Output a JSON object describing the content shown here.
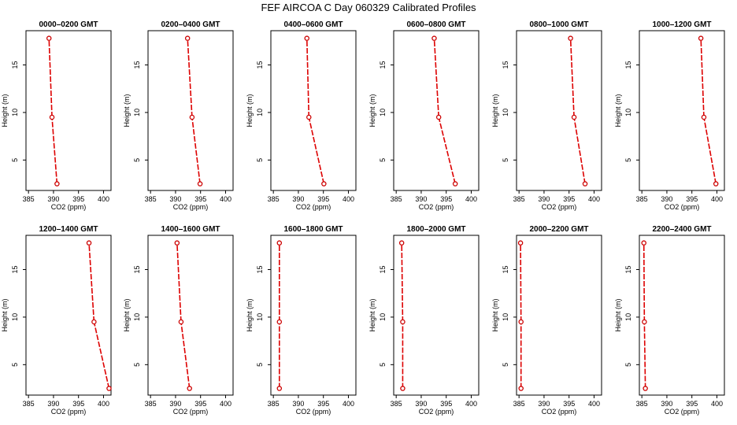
{
  "title": "FEF AIRCOA C  Day 060329  Calibrated Profiles",
  "colors": {
    "line": "#dd0000",
    "marker": "#cc0000",
    "axis": "#000000",
    "background": "#ffffff"
  },
  "chart_data": [
    {
      "type": "line",
      "title": "0000–0200 GMT",
      "xlabel": "CO2 (ppm)",
      "ylabel": "Height (m)",
      "xlim": [
        384.5,
        401.5
      ],
      "ylim": [
        1.8,
        18.6
      ],
      "xticks": [
        385,
        390,
        395,
        400
      ],
      "yticks": [
        5,
        10,
        15
      ],
      "x": [
        390.7,
        389.7,
        389.1
      ],
      "y": [
        2.5,
        9.5,
        17.8
      ]
    },
    {
      "type": "line",
      "title": "0200–0400 GMT",
      "xlabel": "CO2 (ppm)",
      "ylabel": "Height (m)",
      "xlim": [
        384.5,
        401.5
      ],
      "ylim": [
        1.8,
        18.6
      ],
      "xticks": [
        385,
        390,
        395,
        400
      ],
      "yticks": [
        5,
        10,
        15
      ],
      "x": [
        394.9,
        393.3,
        392.4
      ],
      "y": [
        2.5,
        9.5,
        17.8
      ]
    },
    {
      "type": "line",
      "title": "0400–0600 GMT",
      "xlabel": "CO2 (ppm)",
      "ylabel": "Height (m)",
      "xlim": [
        384.5,
        401.5
      ],
      "ylim": [
        1.8,
        18.6
      ],
      "xticks": [
        385,
        390,
        395,
        400
      ],
      "yticks": [
        5,
        10,
        15
      ],
      "x": [
        395.1,
        392.1,
        391.7
      ],
      "y": [
        2.5,
        9.5,
        17.8
      ]
    },
    {
      "type": "line",
      "title": "0600–0800 GMT",
      "xlabel": "CO2 (ppm)",
      "ylabel": "Height (m)",
      "xlim": [
        384.5,
        401.5
      ],
      "ylim": [
        1.8,
        18.6
      ],
      "xticks": [
        385,
        390,
        395,
        400
      ],
      "yticks": [
        5,
        10,
        15
      ],
      "x": [
        396.8,
        393.5,
        392.6
      ],
      "y": [
        2.5,
        9.5,
        17.8
      ]
    },
    {
      "type": "line",
      "title": "0800–1000 GMT",
      "xlabel": "CO2 (ppm)",
      "ylabel": "Height (m)",
      "xlim": [
        384.5,
        401.5
      ],
      "ylim": [
        1.8,
        18.6
      ],
      "xticks": [
        385,
        390,
        395,
        400
      ],
      "yticks": [
        5,
        10,
        15
      ],
      "x": [
        398.2,
        396.0,
        395.3
      ],
      "y": [
        2.5,
        9.5,
        17.8
      ]
    },
    {
      "type": "line",
      "title": "1000–1200 GMT",
      "xlabel": "CO2 (ppm)",
      "ylabel": "Height (m)",
      "xlim": [
        384.5,
        401.5
      ],
      "ylim": [
        1.8,
        18.6
      ],
      "xticks": [
        385,
        390,
        395,
        400
      ],
      "yticks": [
        5,
        10,
        15
      ],
      "x": [
        399.8,
        397.4,
        396.8
      ],
      "y": [
        2.5,
        9.5,
        17.8
      ]
    },
    {
      "type": "line",
      "title": "1200–1400 GMT",
      "xlabel": "CO2 (ppm)",
      "ylabel": "Height (m)",
      "xlim": [
        384.5,
        401.5
      ],
      "ylim": [
        1.8,
        18.6
      ],
      "xticks": [
        385,
        390,
        395,
        400
      ],
      "yticks": [
        5,
        10,
        15
      ],
      "x": [
        401.1,
        398.1,
        397.1
      ],
      "y": [
        2.5,
        9.5,
        17.8
      ]
    },
    {
      "type": "line",
      "title": "1400–1600 GMT",
      "xlabel": "CO2 (ppm)",
      "ylabel": "Height (m)",
      "xlim": [
        384.5,
        401.5
      ],
      "ylim": [
        1.8,
        18.6
      ],
      "xticks": [
        385,
        390,
        395,
        400
      ],
      "yticks": [
        5,
        10,
        15
      ],
      "x": [
        392.8,
        391.1,
        390.3
      ],
      "y": [
        2.5,
        9.5,
        17.8
      ]
    },
    {
      "type": "line",
      "title": "1600–1800 GMT",
      "xlabel": "CO2 (ppm)",
      "ylabel": "Height (m)",
      "xlim": [
        384.5,
        401.5
      ],
      "ylim": [
        1.8,
        18.6
      ],
      "xticks": [
        385,
        390,
        395,
        400
      ],
      "yticks": [
        5,
        10,
        15
      ],
      "x": [
        386.2,
        386.2,
        386.2
      ],
      "y": [
        2.5,
        9.5,
        17.8
      ]
    },
    {
      "type": "line",
      "title": "1800–2000 GMT",
      "xlabel": "CO2 (ppm)",
      "ylabel": "Height (m)",
      "xlim": [
        384.5,
        401.5
      ],
      "ylim": [
        1.8,
        18.6
      ],
      "xticks": [
        385,
        390,
        395,
        400
      ],
      "yticks": [
        5,
        10,
        15
      ],
      "x": [
        386.3,
        386.3,
        386.1
      ],
      "y": [
        2.5,
        9.5,
        17.8
      ]
    },
    {
      "type": "line",
      "title": "2000–2200 GMT",
      "xlabel": "CO2 (ppm)",
      "ylabel": "Height (m)",
      "xlim": [
        384.5,
        401.5
      ],
      "ylim": [
        1.8,
        18.6
      ],
      "xticks": [
        385,
        390,
        395,
        400
      ],
      "yticks": [
        5,
        10,
        15
      ],
      "x": [
        385.4,
        385.4,
        385.3
      ],
      "y": [
        2.5,
        9.5,
        17.8
      ]
    },
    {
      "type": "line",
      "title": "2200–2400 GMT",
      "xlabel": "CO2 (ppm)",
      "ylabel": "Height (m)",
      "xlim": [
        384.5,
        401.5
      ],
      "ylim": [
        1.8,
        18.6
      ],
      "xticks": [
        385,
        390,
        395,
        400
      ],
      "yticks": [
        5,
        10,
        15
      ],
      "x": [
        385.7,
        385.5,
        385.4
      ],
      "y": [
        2.5,
        9.5,
        17.8
      ]
    }
  ]
}
